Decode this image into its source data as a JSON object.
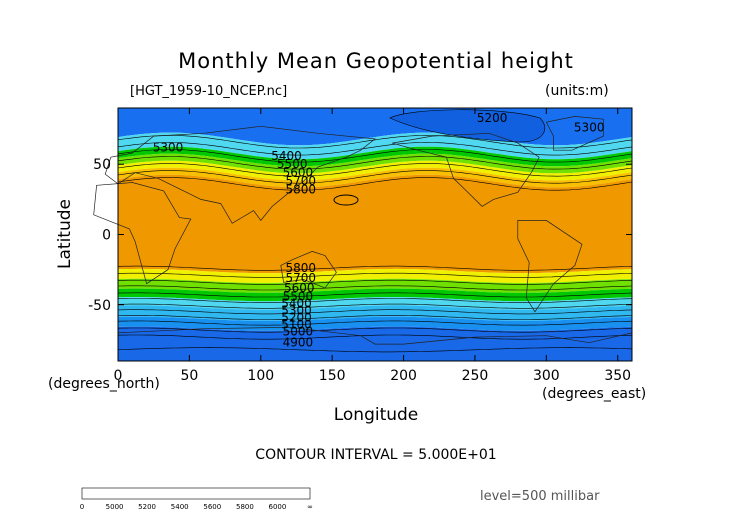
{
  "chart_data": {
    "type": "heatmap",
    "title": "Monthly Mean Geopotential height",
    "file_label": "[HGT_1959-10_NCEP.nc]",
    "units_label": "(units:m)",
    "xlabel": "Longitude",
    "ylabel": "Latitude",
    "x_unit_label": "(degrees_east)",
    "y_unit_label": "(degrees_north)",
    "xlim": [
      0,
      360
    ],
    "ylim": [
      -90,
      90
    ],
    "x_ticks": [
      0,
      50,
      100,
      150,
      200,
      250,
      300,
      350
    ],
    "y_ticks": [
      -50,
      0,
      50
    ],
    "contour_interval_label": "CONTOUR INTERVAL = 5.000E+01",
    "level_label": "level=500 millibar",
    "contour_labels": [
      {
        "text": "5200",
        "lon": 262,
        "lat": 83
      },
      {
        "text": "5300",
        "lon": 35,
        "lat": 62
      },
      {
        "text": "5300",
        "lon": 330,
        "lat": 76
      },
      {
        "text": "5400",
        "lon": 118,
        "lat": 56
      },
      {
        "text": "5500",
        "lon": 122,
        "lat": 50
      },
      {
        "text": "5600",
        "lon": 126,
        "lat": 44
      },
      {
        "text": "5700",
        "lon": 128,
        "lat": 38
      },
      {
        "text": "5800",
        "lon": 128,
        "lat": 32
      },
      {
        "text": "5800",
        "lon": 128,
        "lat": -24
      },
      {
        "text": "5700",
        "lon": 128,
        "lat": -31
      },
      {
        "text": "5600",
        "lon": 127,
        "lat": -38
      },
      {
        "text": "5500",
        "lon": 126,
        "lat": -44
      },
      {
        "text": "5400",
        "lon": 125,
        "lat": -49
      },
      {
        "text": "5300",
        "lon": 125,
        "lat": -54
      },
      {
        "text": "5200",
        "lon": 125,
        "lat": -59
      },
      {
        "text": "5100",
        "lon": 125,
        "lat": -64
      },
      {
        "text": "5000",
        "lon": 126,
        "lat": -69
      },
      {
        "text": "4900",
        "lon": 126,
        "lat": -77
      }
    ],
    "colorbar": {
      "tick_labels": [
        "0",
        "5000",
        "5200",
        "5400",
        "5600",
        "5800",
        "6000",
        "∞"
      ],
      "colors": [
        "#1060e8",
        "#1890f0",
        "#30b8f0",
        "#60e0f8",
        "#00d000",
        "#80e000",
        "#f0f000",
        "#f8c000",
        "#f09000",
        "#f08000",
        "#f04000",
        "#f00000"
      ]
    }
  }
}
